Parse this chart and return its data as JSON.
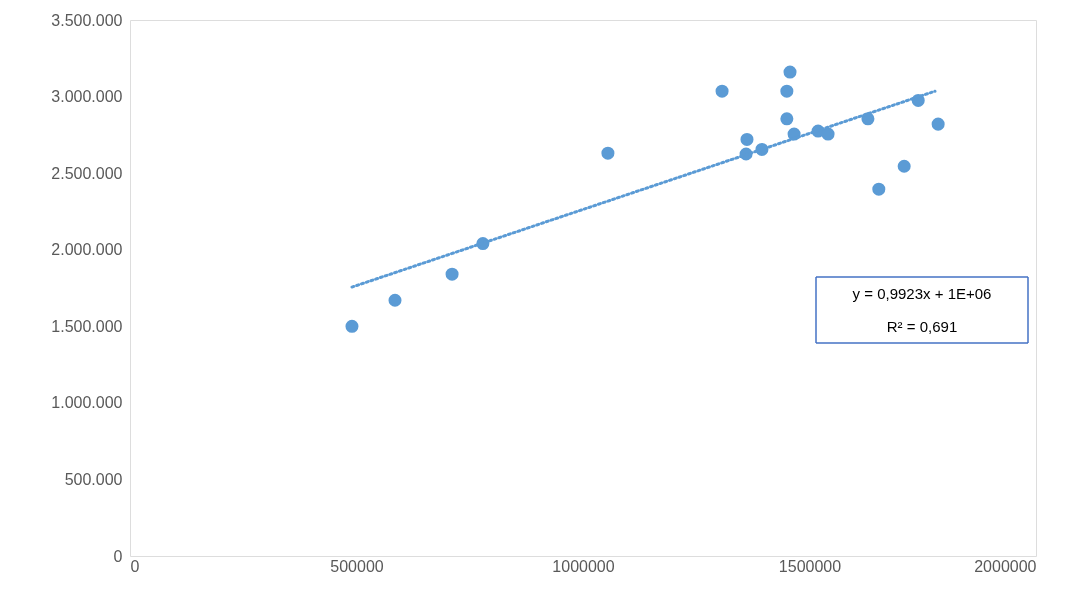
{
  "chart_data": {
    "type": "scatter",
    "series": [
      {
        "color": "#5b9bd5",
        "marker": "circle",
        "x": [
          490000,
          585000,
          711000,
          779000,
          1055000,
          1307000,
          1360000,
          1362000,
          1395000,
          1450000,
          1450000,
          1457000,
          1466000,
          1519000,
          1541000,
          1629000,
          1653000,
          1709000,
          1740000,
          1784000
        ],
        "values": [
          1500000,
          1670000,
          1840000,
          2040000,
          2630000,
          3035000,
          2625000,
          2720000,
          2655000,
          3035000,
          2855000,
          3160000,
          2755000,
          2775000,
          2755000,
          2855000,
          2395000,
          2545000,
          2975000,
          2820000
        ]
      },
      {
        "type": "line",
        "color": "#5b9bd5",
        "line_style": "dotted",
        "marker": "none",
        "x": [
          490000,
          1777000
        ],
        "values": [
          1756000,
          3035000
        ]
      }
    ],
    "xlim": [
      0,
      2000000
    ],
    "xticks": [
      0,
      500000,
      1000000,
      1500000,
      2000000
    ],
    "ylim": [
      0,
      3500000
    ],
    "yticks": [
      0,
      {
        "value": 500000,
        "label": "500.000"
      },
      {
        "value": 1000000,
        "label": "1.000.000"
      },
      {
        "value": 1500000,
        "label": "1.500.000"
      },
      {
        "value": 2000000,
        "label": "2.000.000"
      },
      {
        "value": 2500000,
        "label": "2.500.000"
      },
      {
        "value": 3000000,
        "label": "3.000.000"
      },
      {
        "value": 3500000,
        "label": "3.500.000"
      }
    ],
    "grid": false,
    "annotations": [
      "y = 0,9923x + 1E+06",
      "R² = 0,691"
    ]
  }
}
